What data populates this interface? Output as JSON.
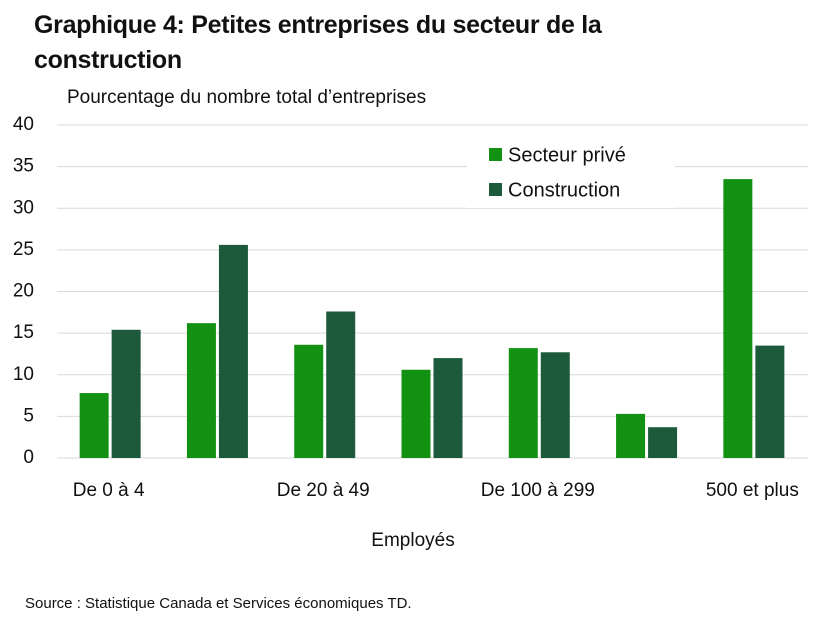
{
  "chart_data": {
    "type": "bar",
    "title": "Graphique 4: Petites entreprises du secteur de la construction",
    "subtitle": "Pourcentage du nombre total d’entreprises",
    "x_label": "Employés",
    "source": "Source : Statistique Canada et Services économiques TD.",
    "categories": [
      "De 0 à 4",
      null,
      "De 20 à 49",
      null,
      "De 100 à 299",
      null,
      "500 et plus"
    ],
    "series": [
      {
        "name": "Secteur privé",
        "color": "#129112",
        "values": [
          7.8,
          16.2,
          13.6,
          10.6,
          13.2,
          5.3,
          33.5
        ]
      },
      {
        "name": "Construction",
        "color": "#1d5a3c",
        "values": [
          15.4,
          25.6,
          17.6,
          12.0,
          12.7,
          3.7,
          13.5
        ]
      }
    ],
    "ylim": [
      0,
      40
    ],
    "yticks": [
      0,
      5,
      10,
      15,
      20,
      25,
      30,
      35,
      40
    ],
    "grid": true
  }
}
